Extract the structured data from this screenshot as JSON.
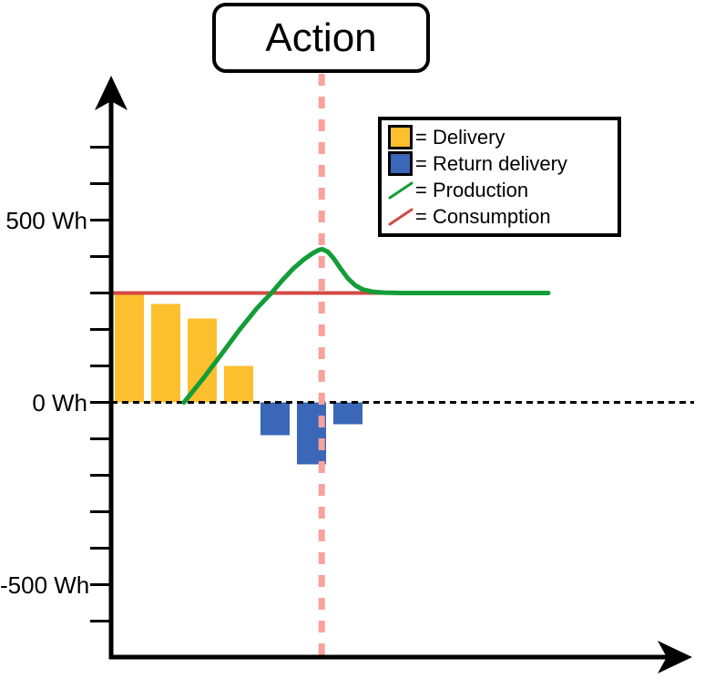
{
  "title": "Action",
  "colors": {
    "delivery": "#FCBF2D",
    "return_delivery": "#3A67B7",
    "production": "#129D38",
    "consumption": "#D24A43",
    "action_line": "#F9A29B",
    "axis": "#000000",
    "background": "#FFFFFF"
  },
  "axis": {
    "y_unit": "Wh",
    "y_labels": [
      {
        "value": 500,
        "label": "500 Wh"
      },
      {
        "value": 0,
        "label": "0 Wh"
      },
      {
        "value": -500,
        "label": "-500 Wh"
      }
    ],
    "y_ticks": [
      700,
      600,
      500,
      400,
      300,
      200,
      100,
      0,
      -100,
      -200,
      -300,
      -400,
      -500,
      -600
    ],
    "x_ticks": []
  },
  "legend": {
    "items": [
      {
        "swatch": "square",
        "color_key": "delivery",
        "label": "= Delivery"
      },
      {
        "swatch": "square",
        "color_key": "return_delivery",
        "label": "= Return delivery"
      },
      {
        "swatch": "line",
        "color_key": "production",
        "label": "= Production"
      },
      {
        "swatch": "line",
        "color_key": "consumption",
        "label": "= Consumption"
      }
    ]
  },
  "chart_data": {
    "type": "mixed-bar-line",
    "title": "Action",
    "ylabel": "Wh",
    "ylim": [
      -650,
      700
    ],
    "grid": false,
    "legend_position": "top-right",
    "bars": [
      {
        "t": 1,
        "series": "delivery",
        "value": 300
      },
      {
        "t": 2,
        "series": "delivery",
        "value": 270
      },
      {
        "t": 3,
        "series": "delivery",
        "value": 230
      },
      {
        "t": 4,
        "series": "delivery",
        "value": 100
      },
      {
        "t": 5,
        "series": "return_delivery",
        "value": -90
      },
      {
        "t": 6,
        "series": "return_delivery",
        "value": -170
      },
      {
        "t": 7,
        "series": "return_delivery",
        "value": -60
      }
    ],
    "production_curve": [
      [
        2.5,
        0
      ],
      [
        3.0,
        62
      ],
      [
        3.5,
        128
      ],
      [
        4.0,
        196
      ],
      [
        4.5,
        258
      ],
      [
        4.9,
        300
      ],
      [
        5.2,
        335
      ],
      [
        5.5,
        367
      ],
      [
        5.8,
        393
      ],
      [
        6.05,
        410
      ],
      [
        6.2,
        418
      ],
      [
        6.3,
        420
      ],
      [
        6.45,
        413
      ],
      [
        6.6,
        396
      ],
      [
        6.8,
        367
      ],
      [
        7.0,
        340
      ],
      [
        7.2,
        321
      ],
      [
        7.4,
        310
      ],
      [
        7.7,
        303
      ],
      [
        8.0,
        301
      ],
      [
        8.5,
        300
      ],
      [
        12.5,
        300
      ]
    ],
    "consumption_line": {
      "value": 300,
      "t_start": 0.5,
      "t_end": 12.5
    },
    "action_line_t": 6.28,
    "zero_line": {
      "value": 0,
      "t_start": 0.5,
      "t_end": 16.5
    }
  }
}
